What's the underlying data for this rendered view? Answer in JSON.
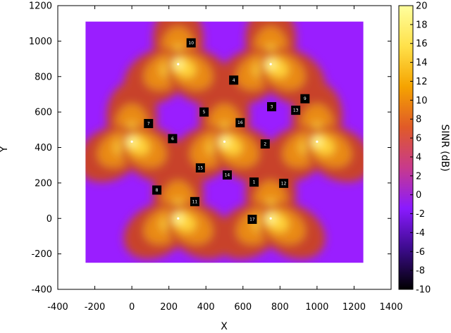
{
  "chart_data": {
    "type": "heatmap",
    "xlabel": "X",
    "ylabel": "Y",
    "colorbar_label": "SINR (dB)",
    "xlim": [
      -400,
      1400
    ],
    "ylim": [
      -400,
      1200
    ],
    "x_ticks": [
      -400,
      -200,
      0,
      200,
      400,
      600,
      800,
      1000,
      1200,
      1400
    ],
    "y_ticks": [
      -400,
      -200,
      0,
      200,
      400,
      600,
      800,
      1000,
      1200
    ],
    "colorbar_range": [
      -10,
      20
    ],
    "colorbar_ticks": [
      -10,
      -8,
      -6,
      -4,
      -2,
      0,
      2,
      4,
      6,
      8,
      10,
      12,
      14,
      16,
      18,
      20
    ],
    "colormap": [
      "#000000",
      "#3c0b8c",
      "#8a1aff",
      "#c83a8c",
      "#e05a28",
      "#f5a300",
      "#ffe14a",
      "#ffff9e"
    ],
    "map_extent": {
      "x": [
        -250,
        1250
      ],
      "y": [
        -250,
        1110
      ]
    },
    "base_stations": [
      {
        "x": 250,
        "y": 870
      },
      {
        "x": 750,
        "y": 870
      },
      {
        "x": 0,
        "y": 433
      },
      {
        "x": 500,
        "y": 433
      },
      {
        "x": 1000,
        "y": 433
      },
      {
        "x": 250,
        "y": 0
      },
      {
        "x": 750,
        "y": 0
      }
    ],
    "labeled_points": [
      {
        "label": "1",
        "x": 660,
        "y": 205
      },
      {
        "label": "2",
        "x": 720,
        "y": 420
      },
      {
        "label": "3",
        "x": 755,
        "y": 630
      },
      {
        "label": "4",
        "x": 550,
        "y": 780
      },
      {
        "label": "5",
        "x": 390,
        "y": 600
      },
      {
        "label": "6",
        "x": 220,
        "y": 450
      },
      {
        "label": "7",
        "x": 90,
        "y": 535
      },
      {
        "label": "8",
        "x": 135,
        "y": 160
      },
      {
        "label": "9",
        "x": 935,
        "y": 675
      },
      {
        "label": "10",
        "x": 320,
        "y": 990
      },
      {
        "label": "11",
        "x": 340,
        "y": 95
      },
      {
        "label": "12",
        "x": 820,
        "y": 198
      },
      {
        "label": "13",
        "x": 885,
        "y": 610
      },
      {
        "label": "14",
        "x": 515,
        "y": 245
      },
      {
        "label": "15",
        "x": 370,
        "y": 285
      },
      {
        "label": "16",
        "x": 585,
        "y": 540
      },
      {
        "label": "17",
        "x": 650,
        "y": -5
      }
    ]
  }
}
